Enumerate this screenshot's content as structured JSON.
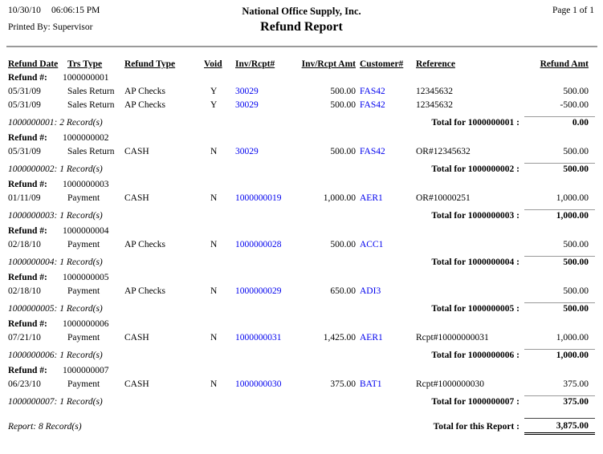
{
  "header": {
    "date": "10/30/10",
    "time": "06:06:15 PM",
    "company": "National Office Supply, Inc.",
    "title": "Refund Report",
    "page": "Page 1 of 1",
    "printed_by": "Printed By: Supervisor"
  },
  "labels": {
    "refund_label": "Refund #:"
  },
  "columns": [
    "Refund Date",
    "Trs Type",
    "Refund Type",
    "Void",
    "Inv/Rcpt#",
    "Inv/Rcpt Amt",
    "Customer#",
    "Reference",
    "Refund Amt"
  ],
  "groups": [
    {
      "refund_no": "1000000001",
      "rows": [
        {
          "date": "05/31/09",
          "trs_type": "Sales Return",
          "refund_type": "AP Checks",
          "void": "Y",
          "inv_rcpt": "30029",
          "inv_amt": "500.00",
          "customer": "FAS42",
          "reference": "12345632",
          "refund_amt": "500.00"
        },
        {
          "date": "05/31/09",
          "trs_type": "Sales Return",
          "refund_type": "AP Checks",
          "void": "Y",
          "inv_rcpt": "30029",
          "inv_amt": "500.00",
          "customer": "FAS42",
          "reference": "12345632",
          "refund_amt": "-500.00"
        }
      ],
      "records": "1000000001: 2 Record(s)",
      "total_label": "Total for 1000000001 :",
      "total": "0.00"
    },
    {
      "refund_no": "1000000002",
      "rows": [
        {
          "date": "05/31/09",
          "trs_type": "Sales Return",
          "refund_type": "CASH",
          "void": "N",
          "inv_rcpt": "30029",
          "inv_amt": "500.00",
          "customer": "FAS42",
          "reference": "OR#12345632",
          "refund_amt": "500.00"
        }
      ],
      "records": "1000000002: 1 Record(s)",
      "total_label": "Total for 1000000002 :",
      "total": "500.00"
    },
    {
      "refund_no": "1000000003",
      "rows": [
        {
          "date": "01/11/09",
          "trs_type": "Payment",
          "refund_type": "CASH",
          "void": "N",
          "inv_rcpt": "1000000019",
          "inv_amt": "1,000.00",
          "customer": "AER1",
          "reference": "OR#10000251",
          "refund_amt": "1,000.00"
        }
      ],
      "records": "1000000003: 1 Record(s)",
      "total_label": "Total for 1000000003 :",
      "total": "1,000.00"
    },
    {
      "refund_no": "1000000004",
      "rows": [
        {
          "date": "02/18/10",
          "trs_type": "Payment",
          "refund_type": "AP Checks",
          "void": "N",
          "inv_rcpt": "1000000028",
          "inv_amt": "500.00",
          "customer": "ACC1",
          "reference": "",
          "refund_amt": "500.00"
        }
      ],
      "records": "1000000004: 1 Record(s)",
      "total_label": "Total for 1000000004 :",
      "total": "500.00"
    },
    {
      "refund_no": "1000000005",
      "rows": [
        {
          "date": "02/18/10",
          "trs_type": "Payment",
          "refund_type": "AP Checks",
          "void": "N",
          "inv_rcpt": "1000000029",
          "inv_amt": "650.00",
          "customer": "ADI3",
          "reference": "",
          "refund_amt": "500.00"
        }
      ],
      "records": "1000000005: 1 Record(s)",
      "total_label": "Total for 1000000005 :",
      "total": "500.00"
    },
    {
      "refund_no": "1000000006",
      "rows": [
        {
          "date": "07/21/10",
          "trs_type": "Payment",
          "refund_type": "CASH",
          "void": "N",
          "inv_rcpt": "1000000031",
          "inv_amt": "1,425.00",
          "customer": "AER1",
          "reference": "Rcpt#10000000031",
          "refund_amt": "1,000.00"
        }
      ],
      "records": "1000000006: 1 Record(s)",
      "total_label": "Total for 1000000006 :",
      "total": "1,000.00"
    },
    {
      "refund_no": "1000000007",
      "rows": [
        {
          "date": "06/23/10",
          "trs_type": "Payment",
          "refund_type": "CASH",
          "void": "N",
          "inv_rcpt": "1000000030",
          "inv_amt": "375.00",
          "customer": "BAT1",
          "reference": "Rcpt#1000000030",
          "refund_amt": "375.00"
        }
      ],
      "records": "1000000007: 1 Record(s)",
      "total_label": "Total for 1000000007 :",
      "total": "375.00"
    }
  ],
  "footer": {
    "records": "Report: 8 Record(s)",
    "total_label": "Total for this Report :",
    "total": "3,875.00"
  },
  "colors": {
    "link": "#0000EE",
    "line": "#999999"
  }
}
